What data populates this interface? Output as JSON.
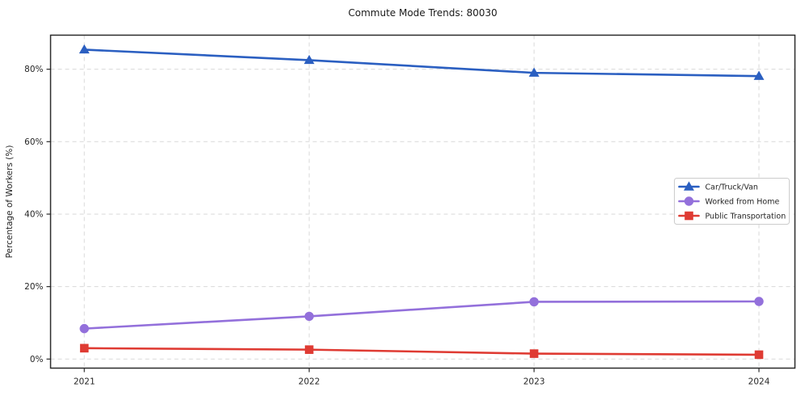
{
  "chart_data": {
    "type": "line",
    "title": "Commute Mode Trends: 80030",
    "xlabel": "",
    "ylabel": "Percentage of Workers (%)",
    "x": [
      2021,
      2022,
      2023,
      2024
    ],
    "x_tick_labels": [
      "2021",
      "2022",
      "2023",
      "2024"
    ],
    "y_ticks": [
      0,
      20,
      40,
      60,
      80
    ],
    "y_tick_labels": [
      "0%",
      "20%",
      "40%",
      "60%",
      "80%"
    ],
    "xlim": [
      2020.85,
      2024.16
    ],
    "ylim": [
      -2.5,
      89.4
    ],
    "grid": true,
    "grid_style": "dashed",
    "legend_position": "center-right",
    "colors": {
      "axis": "#2b2b2b",
      "gridline": "#d9d9d9",
      "legend_border": "#cccccc"
    },
    "series": [
      {
        "name": "Car/Truck/Van",
        "marker": "triangle",
        "color": "#2b5fc1",
        "values": [
          85.4,
          82.5,
          79.0,
          78.1
        ]
      },
      {
        "name": "Worked from Home",
        "marker": "circle",
        "color": "#9370db",
        "values": [
          8.4,
          11.8,
          15.8,
          15.9
        ]
      },
      {
        "name": "Public Transportation",
        "marker": "square",
        "color": "#df3b33",
        "values": [
          3.0,
          2.6,
          1.5,
          1.2
        ]
      }
    ]
  }
}
